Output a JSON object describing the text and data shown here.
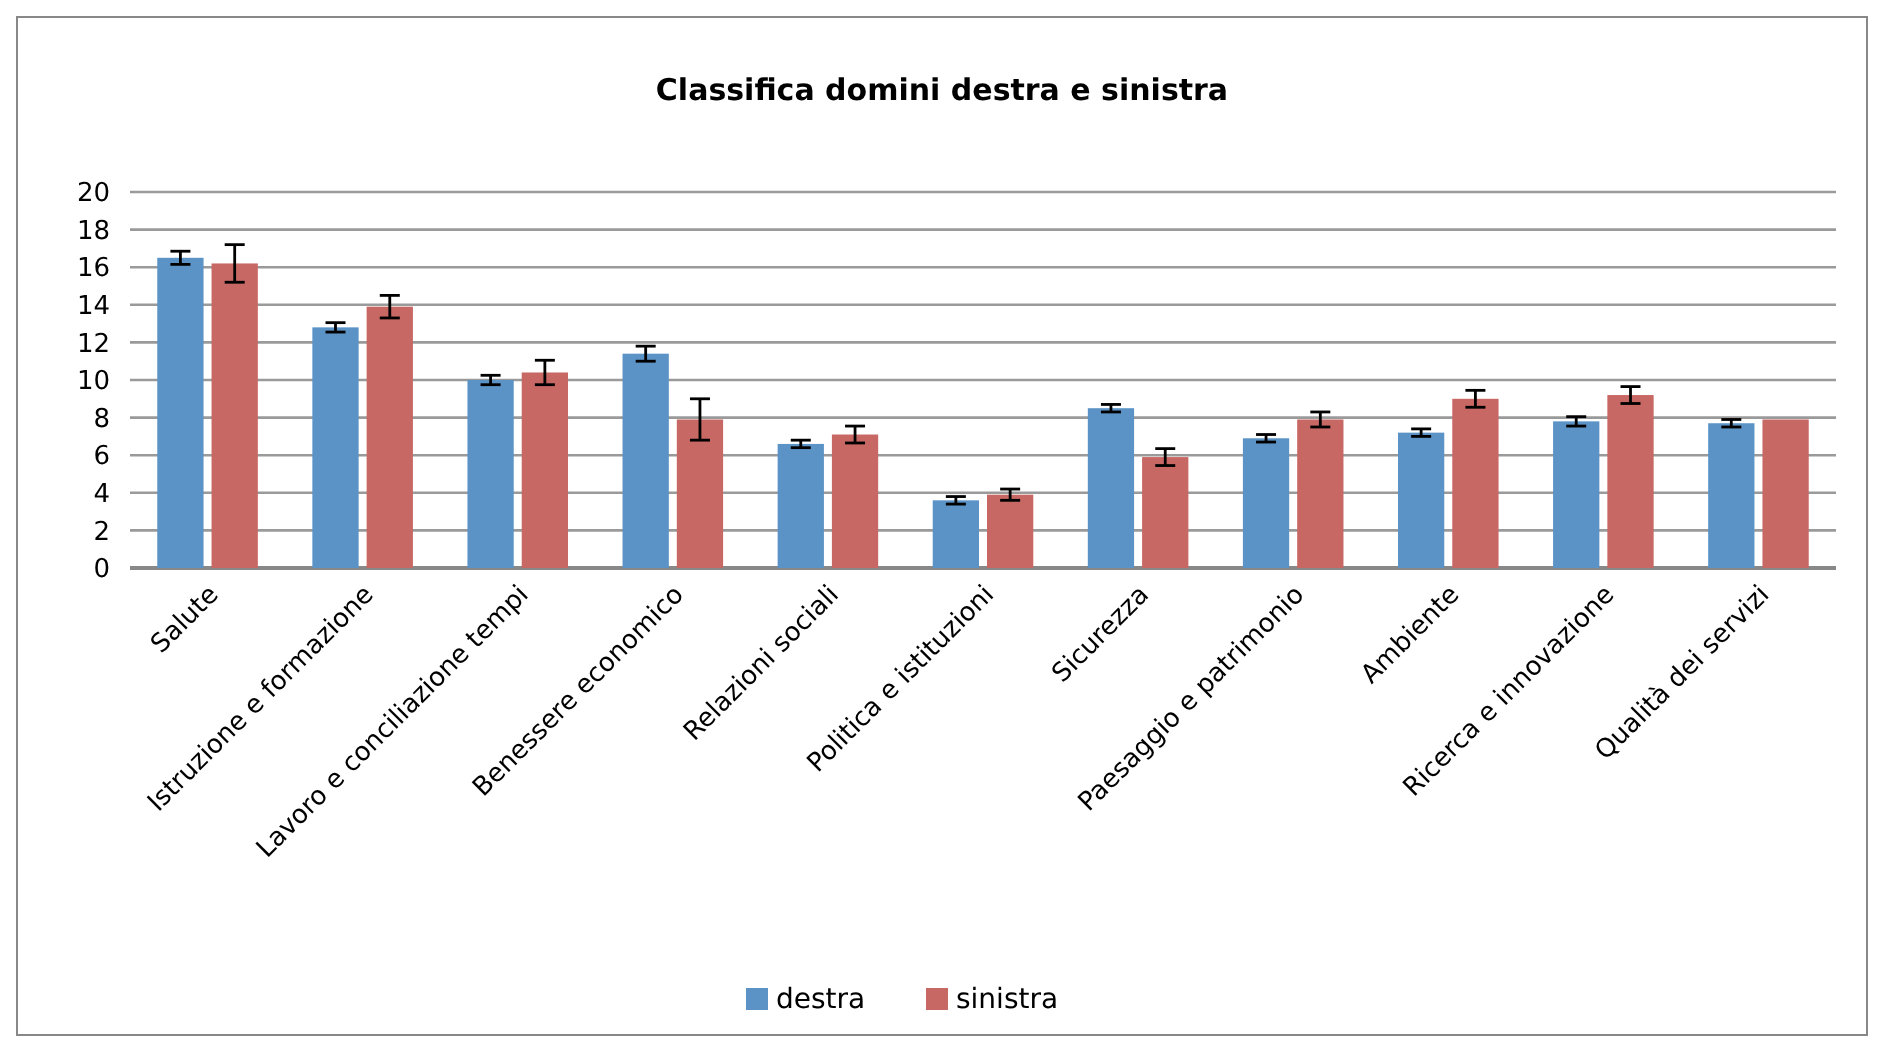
{
  "chart_data": {
    "type": "bar",
    "title": "Classifica domini destra e sinistra",
    "categories": [
      "Salute",
      "Istruzione e formazione",
      "Lavoro e conciliazione tempi",
      "Benessere economico",
      "Relazioni sociali",
      "Politica e istituzioni",
      "Sicurezza",
      "Paesaggio e patrimonio",
      "Ambiente",
      "Ricerca e innovazione",
      "Qualità dei servizi"
    ],
    "series": [
      {
        "name": "destra",
        "color": "#5b93c6",
        "values": [
          16.5,
          12.8,
          10.0,
          11.4,
          6.6,
          3.6,
          8.5,
          6.9,
          7.2,
          7.8,
          7.7
        ],
        "errors": [
          0.35,
          0.25,
          0.25,
          0.4,
          0.2,
          0.2,
          0.2,
          0.2,
          0.2,
          0.25,
          0.2
        ]
      },
      {
        "name": "sinistra",
        "color": "#c86864",
        "values": [
          16.2,
          13.9,
          10.4,
          7.9,
          7.1,
          3.9,
          5.9,
          7.9,
          9.0,
          9.2,
          7.9
        ],
        "errors": [
          1.0,
          0.6,
          0.65,
          1.1,
          0.45,
          0.3,
          0.45,
          0.4,
          0.45,
          0.45,
          null
        ]
      }
    ],
    "ylim": [
      0,
      20
    ],
    "yticks": [
      0,
      2,
      4,
      6,
      8,
      10,
      12,
      14,
      16,
      18,
      20
    ],
    "grid": "y",
    "legend": "bottom"
  }
}
